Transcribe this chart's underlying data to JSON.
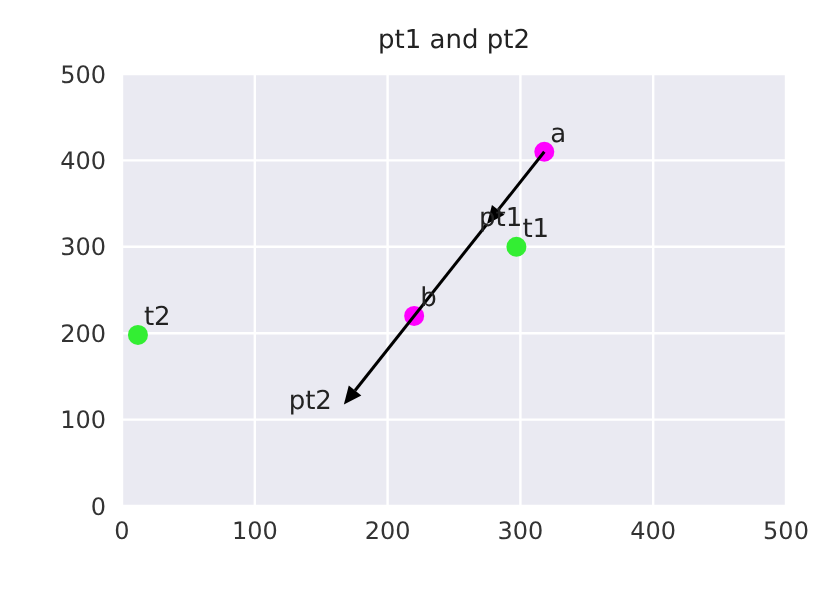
{
  "chart_data": {
    "type": "scatter",
    "title": "pt1 and pt2",
    "series": [
      {
        "color": "#ff00ff",
        "x": [
          318,
          220
        ],
        "values": [
          410,
          220
        ]
      },
      {
        "color": "#33ee33",
        "x": [
          297,
          12
        ],
        "values": [
          300,
          198
        ]
      }
    ],
    "xlim": [
      0,
      500
    ],
    "ylim": [
      0,
      500
    ],
    "xticks": [
      0,
      100,
      200,
      300,
      400,
      500
    ],
    "yticks": [
      0,
      100,
      200,
      300,
      400,
      500
    ],
    "grid": true,
    "marker": "circle",
    "annotations": [
      {
        "text": "a",
        "x": 318,
        "y": 410
      },
      {
        "text": "b",
        "x": 220,
        "y": 220
      },
      {
        "text": "t1",
        "x": 297,
        "y": 300
      },
      {
        "text": "t2",
        "x": 12,
        "y": 198
      },
      "pt1",
      "pt2"
    ]
  }
}
